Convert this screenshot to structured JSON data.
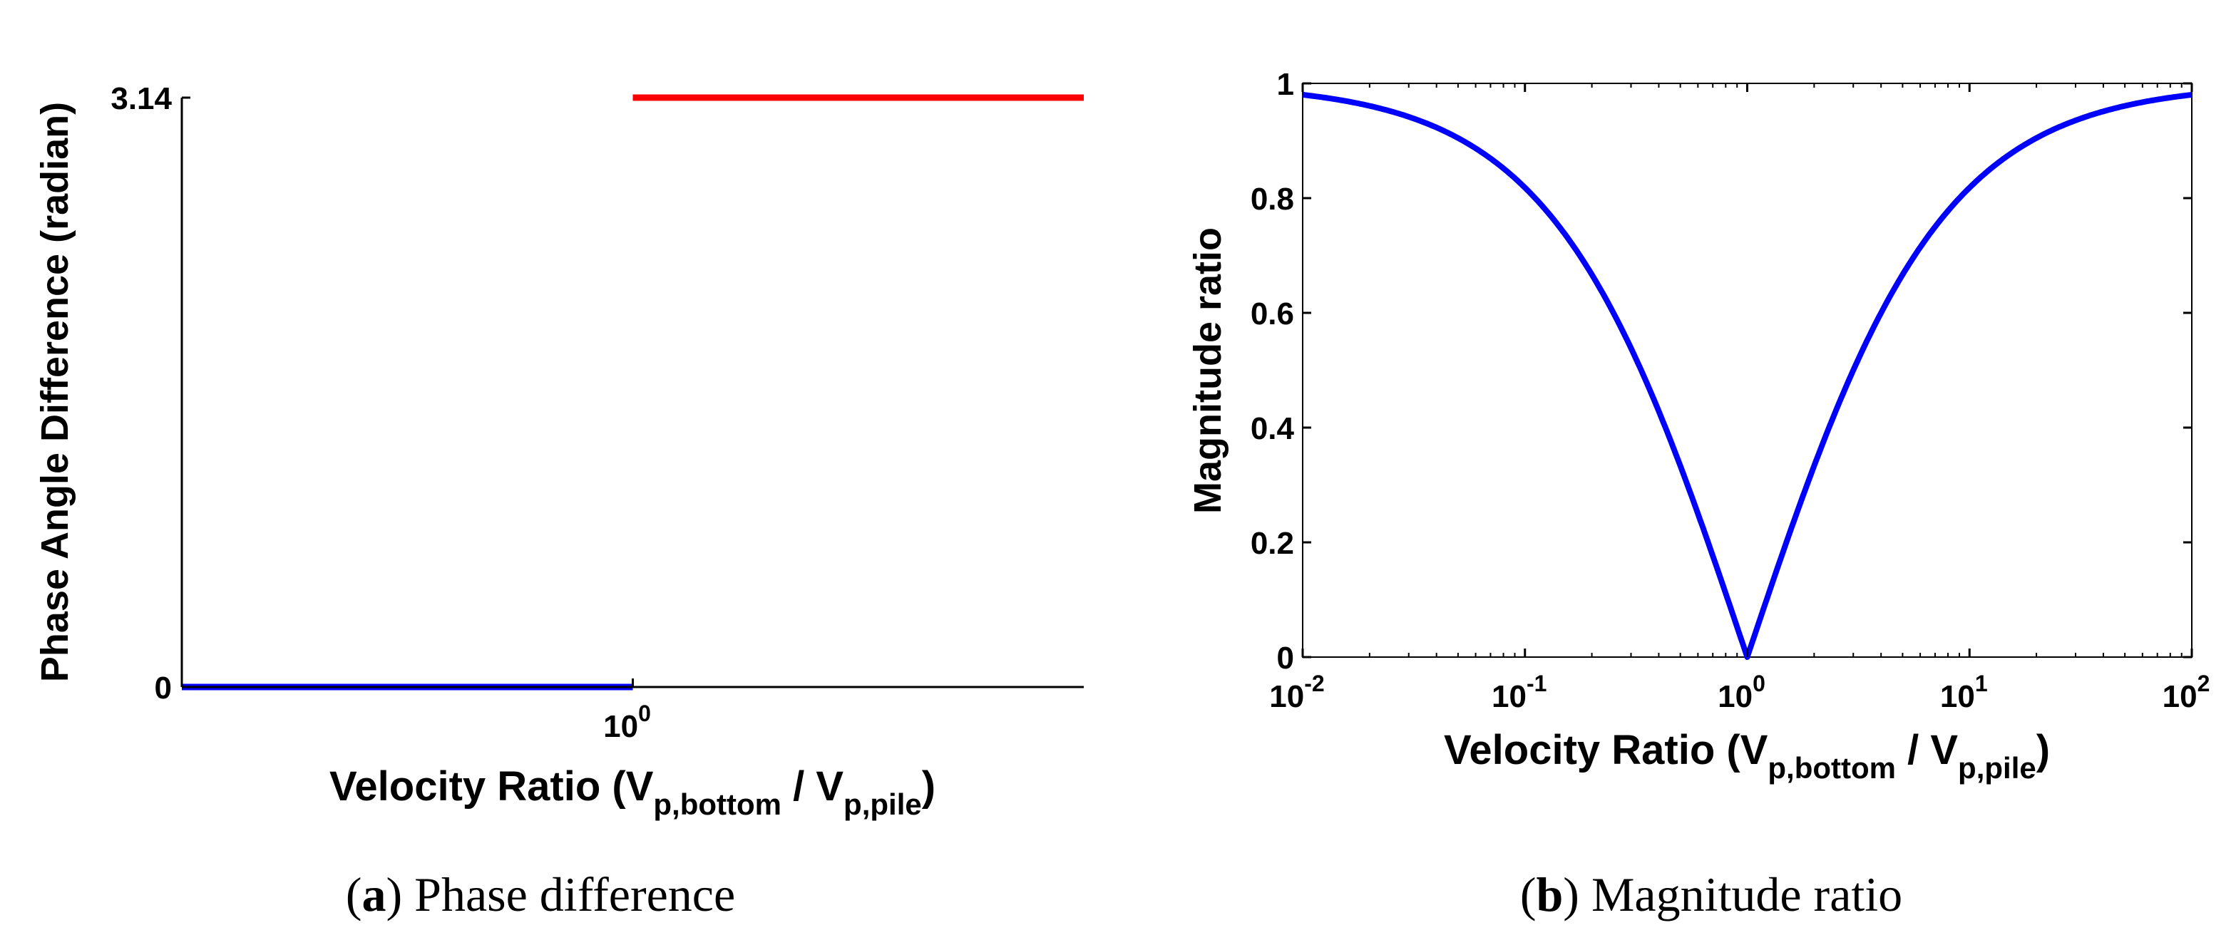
{
  "chart_data": [
    {
      "type": "line",
      "panel": "a",
      "caption_letter": "a",
      "caption_text": ") Phase difference",
      "caption_open": "(",
      "title": "",
      "xlabel": {
        "main": "Velocity Ratio (V",
        "sub1": "p,bottom",
        "mid": " / V",
        "sub2": "p,pile",
        "close": ")"
      },
      "ylabel": "Phase Angle Difference (radian)",
      "xscale": "log",
      "xlim": [
        0.1,
        10
      ],
      "ylim": [
        0,
        3.14
      ],
      "xticks": [
        {
          "base": "10",
          "exp": "0",
          "value": 1
        }
      ],
      "yticks": [
        {
          "label": "0",
          "value": 0
        },
        {
          "label": "3.14",
          "value": 3.14
        }
      ],
      "series": [
        {
          "name": "ratio below 1",
          "color": "#0000ff",
          "x": [
            0.1,
            1
          ],
          "y": [
            0,
            0
          ]
        },
        {
          "name": "ratio above 1",
          "color": "#ff0000",
          "x": [
            1,
            10
          ],
          "y": [
            3.14,
            3.14
          ]
        }
      ]
    },
    {
      "type": "line",
      "panel": "b",
      "caption_letter": "b",
      "caption_text": ") Magnitude ratio",
      "caption_open": "(",
      "title": "",
      "xlabel": {
        "main": "Velocity Ratio (V",
        "sub1": "p,bottom",
        "mid": " / V",
        "sub2": "p,pile",
        "close": ")"
      },
      "ylabel": "Magnitude ratio",
      "xscale": "log",
      "xlim": [
        0.01,
        100
      ],
      "ylim": [
        0,
        1
      ],
      "xticks": [
        {
          "base": "10",
          "exp": "-2",
          "value": 0.01
        },
        {
          "base": "10",
          "exp": "-1",
          "value": 0.1
        },
        {
          "base": "10",
          "exp": "0",
          "value": 1
        },
        {
          "base": "10",
          "exp": "1",
          "value": 10
        },
        {
          "base": "10",
          "exp": "2",
          "value": 100
        }
      ],
      "yticks": [
        {
          "label": "0",
          "value": 0
        },
        {
          "label": "0.2",
          "value": 0.2
        },
        {
          "label": "0.4",
          "value": 0.4
        },
        {
          "label": "0.6",
          "value": 0.6
        },
        {
          "label": "0.8",
          "value": 0.8
        },
        {
          "label": "1",
          "value": 1
        }
      ],
      "series": [
        {
          "name": "magnitude ratio",
          "color": "#0000ff",
          "formula": "|1 - r| / (1 + r)",
          "x_range": [
            0.01,
            100
          ]
        }
      ]
    }
  ]
}
